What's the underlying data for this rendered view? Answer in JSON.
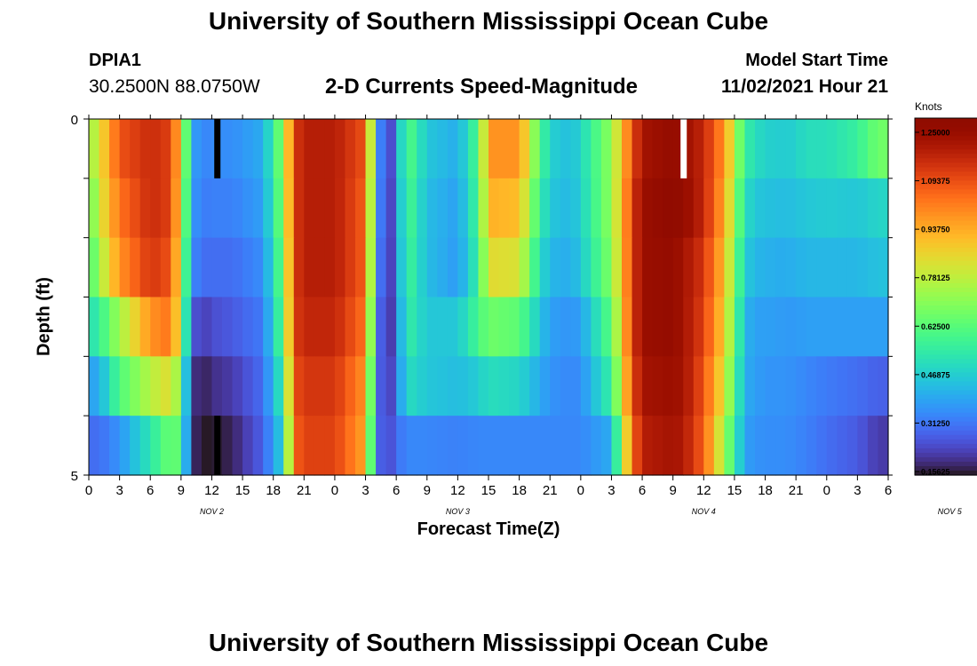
{
  "page": {
    "title": "University of Southern Mississippi Ocean Cube",
    "title_repeat": "University of Southern Mississippi Ocean Cube",
    "station_id": "DPIA1",
    "coordinates": "30.2500N  88.0750W",
    "subtitle": "2-D Currents Speed-Magnitude",
    "model_start_label": "Model Start Time",
    "model_start_value": "11/02/2021 Hour 21"
  },
  "chart_data": {
    "type": "heatmap",
    "title": "2-D Currents Speed-Magnitude",
    "xlabel": "Forecast Time(Z)",
    "ylabel": "Depth (ft)",
    "x_tick_labels": [
      "0",
      "3",
      "6",
      "9",
      "12",
      "15",
      "18",
      "21",
      "0",
      "3",
      "6",
      "9",
      "12",
      "15",
      "18",
      "21",
      "0",
      "3",
      "6",
      "9",
      "12",
      "15",
      "18",
      "21",
      "0",
      "3",
      "6"
    ],
    "x_day_labels": [
      {
        "label": "NOV 2",
        "hour": 12
      },
      {
        "label": "NOV 3",
        "hour": 36
      },
      {
        "label": "NOV 4",
        "hour": 60
      },
      {
        "label": "NOV 5",
        "hour": 84
      }
    ],
    "x_range_hours": [
      0,
      78
    ],
    "y_tick_labels": [
      "0",
      "5"
    ],
    "ylim": [
      0,
      5
    ],
    "depth_levels": 5,
    "colorbar": {
      "title": "Knots",
      "ticks": [
        "1.25000",
        "1.09375",
        "0.93750",
        "0.78125",
        "0.62500",
        "0.46875",
        "0.31250",
        "0.15625"
      ],
      "range": [
        0.15625,
        1.25
      ]
    },
    "colors": {
      "low": "#30123b",
      "mid_blue": "#3e9bfe",
      "mid_green": "#46f884",
      "mid_yellow": "#e1dd37",
      "high": "#7a0403"
    },
    "anchor_hours": [
      0,
      1,
      3,
      6,
      8,
      9,
      10,
      11,
      12,
      14,
      17,
      19,
      20,
      21,
      24,
      27,
      28,
      29,
      30,
      31,
      33,
      36,
      38,
      39,
      42,
      44,
      45,
      47,
      48,
      51,
      53,
      54,
      57,
      58,
      60,
      62,
      64,
      65,
      66,
      68,
      69,
      70,
      72,
      75,
      77
    ],
    "speed_by_depth": [
      [
        0.7,
        0.8,
        1.05,
        1.12,
        1.08,
        0.85,
        0.4,
        0.33,
        0.35,
        0.35,
        0.4,
        0.7,
        1.08,
        1.15,
        1.15,
        1.05,
        0.5,
        0.15,
        0.35,
        0.62,
        0.45,
        0.4,
        0.6,
        0.95,
        0.95,
        0.6,
        0.47,
        0.43,
        0.48,
        0.7,
        1.05,
        1.18,
        1.22,
        1.2,
        1.13,
        0.95,
        0.55,
        0.5,
        0.47,
        0.46,
        0.47,
        0.5,
        0.5,
        0.55,
        0.65
      ],
      [
        0.62,
        0.78,
        1.0,
        1.12,
        1.08,
        0.82,
        0.38,
        0.32,
        0.33,
        0.33,
        0.38,
        0.68,
        1.08,
        1.15,
        1.15,
        1.03,
        0.48,
        0.15,
        0.33,
        0.6,
        0.43,
        0.38,
        0.58,
        0.9,
        0.88,
        0.55,
        0.45,
        0.42,
        0.47,
        0.7,
        1.08,
        1.2,
        1.24,
        1.22,
        1.13,
        0.92,
        0.5,
        0.45,
        0.44,
        0.43,
        0.44,
        0.45,
        0.46,
        0.45,
        0.48
      ],
      [
        0.57,
        0.72,
        0.95,
        1.1,
        1.05,
        0.78,
        0.35,
        0.3,
        0.3,
        0.3,
        0.35,
        0.65,
        1.08,
        1.15,
        1.15,
        1.03,
        0.45,
        0.15,
        0.32,
        0.58,
        0.43,
        0.37,
        0.55,
        0.82,
        0.8,
        0.5,
        0.42,
        0.4,
        0.45,
        0.68,
        1.08,
        1.2,
        1.22,
        1.18,
        1.1,
        0.88,
        0.46,
        0.42,
        0.41,
        0.4,
        0.41,
        0.42,
        0.42,
        0.42,
        0.44
      ],
      [
        0.5,
        0.55,
        0.72,
        0.95,
        1.0,
        0.75,
        0.28,
        0.22,
        0.25,
        0.27,
        0.32,
        0.62,
        1.08,
        1.13,
        1.13,
        1.0,
        0.4,
        0.15,
        0.3,
        0.55,
        0.45,
        0.45,
        0.58,
        0.65,
        0.62,
        0.45,
        0.38,
        0.36,
        0.38,
        0.62,
        1.08,
        1.2,
        1.22,
        1.18,
        1.08,
        0.85,
        0.42,
        0.38,
        0.38,
        0.37,
        0.37,
        0.38,
        0.38,
        0.38,
        0.38
      ],
      [
        0.38,
        0.4,
        0.6,
        0.75,
        0.82,
        0.65,
        0.22,
        0.17,
        0.2,
        0.22,
        0.3,
        0.55,
        1.05,
        1.1,
        1.1,
        0.95,
        0.36,
        0.18,
        0.3,
        0.5,
        0.45,
        0.43,
        0.46,
        0.5,
        0.48,
        0.4,
        0.36,
        0.34,
        0.35,
        0.55,
        1.05,
        1.18,
        1.2,
        1.18,
        1.05,
        0.8,
        0.4,
        0.38,
        0.36,
        0.36,
        0.35,
        0.34,
        0.32,
        0.3,
        0.28
      ],
      [
        0.3,
        0.3,
        0.36,
        0.52,
        0.65,
        0.6,
        0.2,
        0.16,
        0.16,
        0.18,
        0.28,
        0.48,
        1.02,
        1.08,
        1.08,
        0.92,
        0.33,
        0.22,
        0.3,
        0.34,
        0.34,
        0.33,
        0.34,
        0.34,
        0.34,
        0.34,
        0.34,
        0.34,
        0.34,
        0.4,
        1.0,
        1.15,
        1.18,
        1.16,
        1.03,
        0.72,
        0.38,
        0.36,
        0.35,
        0.35,
        0.34,
        0.33,
        0.3,
        0.27,
        0.22
      ]
    ],
    "special_cells": [
      {
        "label": "missing",
        "depth_row": 0,
        "hour": 12.5,
        "color": "#000000"
      },
      {
        "label": "missing",
        "depth_row": 5,
        "hour": 12.5,
        "color": "#000000"
      },
      {
        "label": "blank",
        "depth_row": 0,
        "hour": 58,
        "color": "#ffffff"
      }
    ]
  }
}
